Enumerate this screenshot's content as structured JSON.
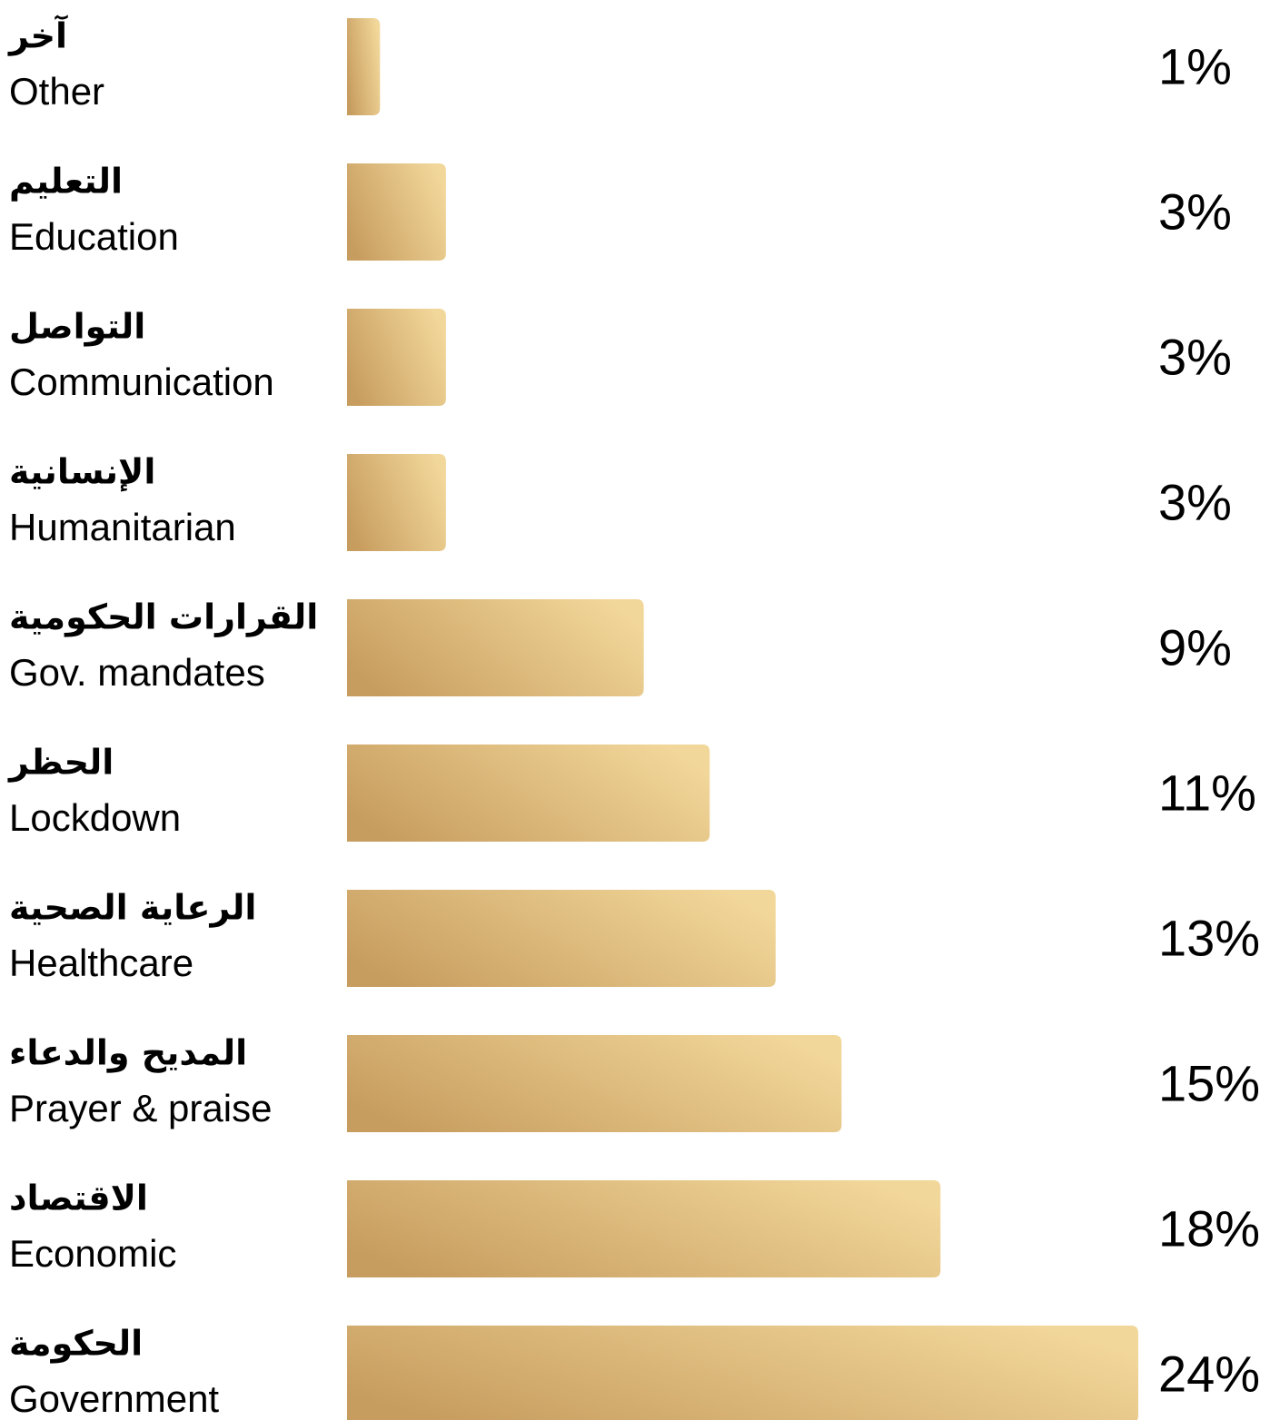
{
  "chart_data": {
    "type": "bar",
    "orientation": "horizontal",
    "categories": [
      {
        "ar": "آخر",
        "en": "Other"
      },
      {
        "ar": "التعليم",
        "en": "Education"
      },
      {
        "ar": "التواصل",
        "en": "Communication"
      },
      {
        "ar": "الإنسانية",
        "en": "Humanitarian"
      },
      {
        "ar": "القرارات الحكومية",
        "en": "Gov. mandates"
      },
      {
        "ar": "الحظر",
        "en": "Lockdown"
      },
      {
        "ar": "الرعاية الصحية",
        "en": "Healthcare"
      },
      {
        "ar": "المديح والدعاء",
        "en": "Prayer & praise"
      },
      {
        "ar": "الاقتصاد",
        "en": "Economic"
      },
      {
        "ar": "الحكومة",
        "en": "Government"
      }
    ],
    "values": [
      1,
      3,
      3,
      3,
      9,
      11,
      13,
      15,
      18,
      24
    ],
    "value_labels": [
      "1%",
      "3%",
      "3%",
      "3%",
      "9%",
      "11%",
      "13%",
      "15%",
      "18%",
      "24%"
    ],
    "color_stops": [
      "#c79d5f",
      "#f2d79a"
    ]
  }
}
